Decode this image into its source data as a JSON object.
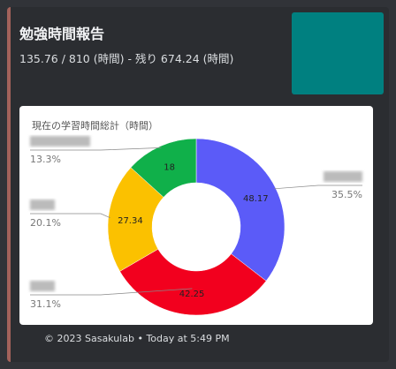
{
  "embed": {
    "title": "勉強時間報告",
    "description": "135.76 / 810 (時間) - 残り 674.24 (時間)",
    "footer": "© 2023 Sasakulab • Today at 5:49 PM"
  },
  "chart_data": {
    "type": "pie",
    "title": "現在の学習時間総計（時間）",
    "values": [
      48.17,
      42.25,
      27.34,
      18
    ],
    "percent_labels": [
      "35.5%",
      "31.1%",
      "20.1%",
      "13.3%"
    ],
    "colors": [
      "#5b5bf8",
      "#f2001e",
      "#fbc100",
      "#10b04a"
    ],
    "donut": true
  }
}
